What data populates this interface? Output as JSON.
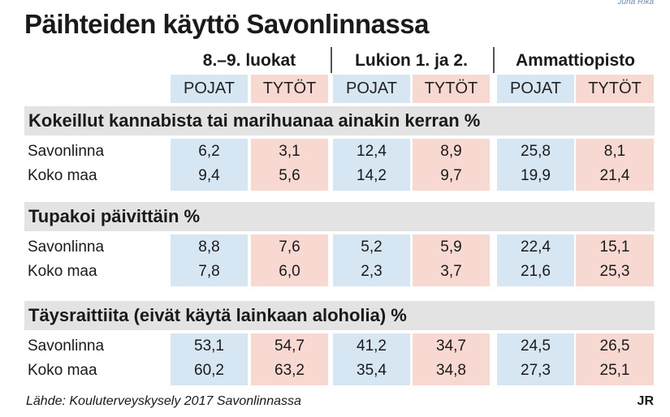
{
  "credit": "Juha Rika",
  "title": "Päihteiden käyttö Savonlinnassa",
  "groups": [
    "8.–9. luokat",
    "Lukion 1. ja 2.",
    "Ammattiopisto"
  ],
  "columns": [
    "POJAT",
    "TYTÖT",
    "POJAT",
    "TYTÖT",
    "POJAT",
    "TYTÖT"
  ],
  "colors": {
    "boys": "#d6e6f3",
    "girls": "#f7d9d2",
    "section": "#e3e3e3"
  },
  "chart_data": {
    "type": "table",
    "title": "Päihteiden käyttö Savonlinnassa",
    "groups": [
      "8.–9. luokat",
      "Lukion 1. ja 2.",
      "Ammattiopisto"
    ],
    "columns": [
      "POJAT",
      "TYTÖT",
      "POJAT",
      "TYTÖT",
      "POJAT",
      "TYTÖT"
    ],
    "sections": [
      {
        "title": "Kokeillut kannabista tai marihuanaa ainakin kerran %",
        "rows": [
          {
            "label": "Savonlinna",
            "values": [
              "6,2",
              "3,1",
              "12,4",
              "8,9",
              "25,8",
              "8,1"
            ]
          },
          {
            "label": "Koko maa",
            "values": [
              "9,4",
              "5,6",
              "14,2",
              "9,7",
              "19,9",
              "21,4"
            ]
          }
        ]
      },
      {
        "title": "Tupakoi päivittäin %",
        "rows": [
          {
            "label": "Savonlinna",
            "values": [
              "8,8",
              "7,6",
              "5,2",
              "5,9",
              "22,4",
              "15,1"
            ]
          },
          {
            "label": "Koko maa",
            "values": [
              "7,8",
              "6,0",
              "2,3",
              "3,7",
              "21,6",
              "25,3"
            ]
          }
        ]
      },
      {
        "title": "Täysraittiita (eivät käytä lainkaan aloholia) %",
        "rows": [
          {
            "label": "Savonlinna",
            "values": [
              "53,1",
              "54,7",
              "41,2",
              "34,7",
              "24,5",
              "26,5"
            ]
          },
          {
            "label": "Koko maa",
            "values": [
              "60,2",
              "63,2",
              "35,4",
              "34,8",
              "27,3",
              "25,1"
            ]
          }
        ]
      }
    ]
  },
  "source": "Lähde: Kouluterveyskysely 2017 Savonlinnassa",
  "author": "JR"
}
